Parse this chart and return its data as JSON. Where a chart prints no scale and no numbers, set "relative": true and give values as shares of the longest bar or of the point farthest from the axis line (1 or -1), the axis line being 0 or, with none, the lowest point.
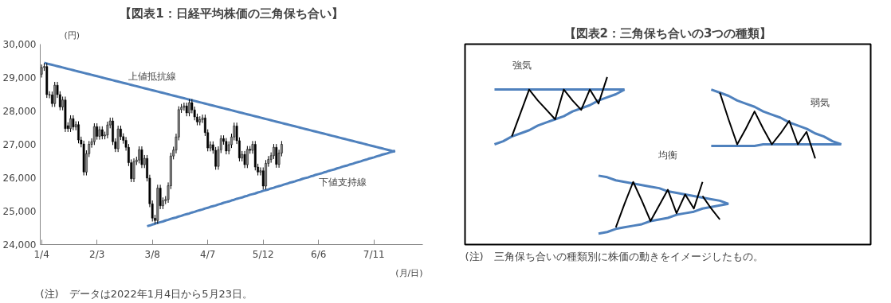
{
  "chart_data": [
    {
      "type": "candlestick",
      "title": "【図表1：日経平均株価の三角保ち合い】",
      "ylabel": "(円)",
      "xlabel": "(月/日)",
      "categories": [
        "1/4",
        null,
        null,
        null,
        null,
        null,
        null,
        null,
        null,
        null,
        null,
        null,
        null,
        null,
        null,
        null,
        null,
        null,
        null,
        null,
        null,
        "2/3",
        null,
        null,
        null,
        null,
        null,
        null,
        null,
        null,
        null,
        null,
        null,
        null,
        null,
        null,
        null,
        null,
        null,
        null,
        null,
        null,
        "3/8",
        null,
        null,
        null,
        null,
        null,
        null,
        null,
        null,
        null,
        null,
        null,
        null,
        null,
        null,
        null,
        null,
        null,
        null,
        null,
        null,
        "4/7",
        null,
        null,
        null,
        null,
        null,
        null,
        null,
        null,
        null,
        null,
        null,
        null,
        null,
        null,
        null,
        null,
        null,
        null,
        null,
        null,
        "5/12",
        null,
        null,
        null,
        null,
        null,
        null,
        null,
        null,
        null,
        null,
        null,
        null,
        null,
        null,
        null,
        null,
        null,
        null,
        null,
        null,
        "6/6",
        null,
        null,
        null,
        null,
        null,
        null,
        null,
        null,
        null,
        null,
        null,
        null,
        null,
        null,
        null,
        null,
        null,
        null,
        null,
        null,
        "7/11",
        null,
        null,
        null,
        null,
        null,
        null,
        null,
        null,
        null,
        null,
        null,
        null,
        null,
        null,
        null,
        null,
        null,
        null
      ],
      "ohlc": [
        [
          29100,
          29390,
          29000,
          29300
        ],
        [
          29300,
          29430,
          29200,
          29330
        ],
        [
          29330,
          29430,
          28390,
          28490
        ],
        [
          28490,
          28590,
          28380,
          28480
        ],
        [
          28480,
          28580,
          28120,
          28220
        ],
        [
          28220,
          28870,
          28120,
          28770
        ],
        [
          28770,
          28870,
          28390,
          28490
        ],
        [
          28490,
          28590,
          28020,
          28120
        ],
        [
          28120,
          28430,
          28020,
          28330
        ],
        [
          28330,
          28430,
          27370,
          27470
        ],
        [
          27560,
          27660,
          27370,
          27470
        ],
        [
          27470,
          27870,
          27370,
          27770
        ],
        [
          27770,
          27870,
          27420,
          27520
        ],
        [
          27520,
          27690,
          27420,
          27590
        ],
        [
          27590,
          27690,
          27030,
          27130
        ],
        [
          27130,
          27230,
          26910,
          27010
        ],
        [
          27010,
          27110,
          26070,
          26170
        ],
        [
          26170,
          26820,
          26070,
          26720
        ],
        [
          26720,
          27100,
          26620,
          27000
        ],
        [
          27000,
          27180,
          26900,
          27080
        ],
        [
          27080,
          27630,
          26980,
          27530
        ],
        [
          27530,
          27630,
          27140,
          27240
        ],
        [
          27240,
          27540,
          27140,
          27440
        ],
        [
          27440,
          27540,
          27150,
          27250
        ],
        [
          27250,
          27380,
          27150,
          27280
        ],
        [
          27280,
          27680,
          27180,
          27580
        ],
        [
          27580,
          27800,
          27480,
          27700
        ],
        [
          27700,
          27800,
          26980,
          27080
        ],
        [
          27080,
          27180,
          26770,
          26870
        ],
        [
          26870,
          27560,
          26770,
          27460
        ],
        [
          27460,
          27560,
          27130,
          27230
        ],
        [
          27230,
          27330,
          27020,
          27120
        ],
        [
          27120,
          27220,
          26810,
          26910
        ],
        [
          26910,
          27010,
          26350,
          26450
        ],
        [
          26450,
          26550,
          25870,
          25970
        ],
        [
          25970,
          26580,
          25870,
          26480
        ],
        [
          26480,
          26630,
          26380,
          26530
        ],
        [
          26530,
          26940,
          26430,
          26840
        ],
        [
          26840,
          26940,
          26290,
          26390
        ],
        [
          26390,
          26680,
          26290,
          26580
        ],
        [
          26580,
          26680,
          25890,
          25990
        ],
        [
          25990,
          26090,
          25120,
          25220
        ],
        [
          25220,
          25320,
          24690,
          24790
        ],
        [
          24790,
          24890,
          24620,
          24720
        ],
        [
          24720,
          25790,
          24620,
          25690
        ],
        [
          25690,
          25790,
          25060,
          25160
        ],
        [
          25160,
          25410,
          25060,
          25310
        ],
        [
          25310,
          25450,
          25210,
          25350
        ],
        [
          25350,
          25860,
          25250,
          25760
        ],
        [
          25760,
          26750,
          25660,
          26650
        ],
        [
          26650,
          26930,
          26550,
          26830
        ],
        [
          26830,
          27320,
          26730,
          27220
        ],
        [
          27220,
          28140,
          27120,
          28040
        ],
        [
          28040,
          28210,
          27940,
          28110
        ],
        [
          28110,
          28250,
          28010,
          28150
        ],
        [
          28150,
          28250,
          27840,
          27940
        ],
        [
          27940,
          28350,
          27840,
          28250
        ],
        [
          28250,
          28350,
          27930,
          28030
        ],
        [
          28030,
          28130,
          27720,
          27820
        ],
        [
          27820,
          27920,
          27570,
          27670
        ],
        [
          27670,
          27840,
          27570,
          27740
        ],
        [
          27740,
          27890,
          27640,
          27790
        ],
        [
          27790,
          27890,
          27250,
          27350
        ],
        [
          27350,
          27450,
          26790,
          26890
        ],
        [
          26890,
          27090,
          26790,
          26990
        ],
        [
          26990,
          27090,
          26720,
          26820
        ],
        [
          26820,
          26920,
          26240,
          26340
        ],
        [
          26340,
          26940,
          26240,
          26840
        ],
        [
          26840,
          27270,
          26740,
          27170
        ],
        [
          27170,
          27270,
          26990,
          27090
        ],
        [
          27090,
          27190,
          26700,
          26800
        ],
        [
          26800,
          27090,
          26700,
          26990
        ],
        [
          26990,
          27320,
          26890,
          27220
        ],
        [
          27220,
          27650,
          27120,
          27550
        ],
        [
          27550,
          27650,
          27010,
          27110
        ],
        [
          27110,
          27210,
          26490,
          26590
        ],
        [
          26590,
          26800,
          26490,
          26700
        ],
        [
          26700,
          26800,
          26290,
          26390
        ],
        [
          26390,
          26950,
          26290,
          26850
        ],
        [
          26850,
          26950,
          26720,
          26820
        ],
        [
          26820,
          27100,
          26720,
          27000
        ],
        [
          27000,
          27100,
          26220,
          26320
        ],
        [
          26320,
          26420,
          26070,
          26170
        ],
        [
          26170,
          26310,
          26070,
          26210
        ],
        [
          26210,
          26310,
          25650,
          25750
        ],
        [
          25750,
          26530,
          25650,
          26430
        ],
        [
          26430,
          26650,
          26330,
          26550
        ],
        [
          26550,
          26760,
          26450,
          26660
        ],
        [
          26660,
          27010,
          26560,
          26910
        ],
        [
          26910,
          27010,
          26300,
          26400
        ],
        [
          26400,
          26840,
          26300,
          26740
        ],
        [
          26740,
          27100,
          26640,
          27000
        ],
        null,
        null,
        null,
        null,
        null,
        null,
        null,
        null,
        null,
        null,
        null,
        null,
        null,
        null,
        null,
        null,
        null,
        null,
        null,
        null,
        null,
        null,
        null,
        null,
        null,
        null,
        null,
        null,
        null,
        null,
        null,
        null,
        null,
        null,
        null,
        null,
        null,
        null,
        null,
        null,
        null,
        null,
        null,
        null,
        null,
        null,
        null,
        null,
        null,
        null,
        null,
        null,
        null
      ],
      "colors": [
        "#808080",
        "#808080",
        "#000000",
        "#000000",
        "#000000",
        "#808080",
        "#000000",
        "#000000",
        "#808080",
        "#000000",
        "#000000",
        "#808080",
        "#000000",
        "#808080",
        "#000000",
        "#000000",
        "#000000",
        "#808080",
        "#808080",
        "#808080",
        "#808080",
        "#000000",
        "#808080",
        "#000000",
        "#808080",
        "#808080",
        "#808080",
        "#000000",
        "#000000",
        "#808080",
        "#000000",
        "#000000",
        "#000000",
        "#000000",
        "#000000",
        "#808080",
        "#808080",
        "#808080",
        "#000000",
        "#808080",
        "#000000",
        "#000000",
        "#000000",
        "#000000",
        "#808080",
        "#000000",
        "#808080",
        "#808080",
        "#808080",
        "#808080",
        "#808080",
        "#808080",
        "#808080",
        "#808080",
        "#808080",
        "#000000",
        "#808080",
        "#000000",
        "#000000",
        "#000000",
        "#808080",
        "#808080",
        "#000000",
        "#000000",
        "#808080",
        "#000000",
        "#000000",
        "#808080",
        "#808080",
        "#000000",
        "#000000",
        "#808080",
        "#808080",
        "#808080",
        "#000000",
        "#000000",
        "#808080",
        "#000000",
        "#808080",
        "#000000",
        "#808080",
        "#000000",
        "#000000",
        "#808080",
        "#000000",
        "#808080",
        "#808080",
        "#808080",
        "#808080",
        "#000000",
        "#808080",
        "#808080",
        null,
        null,
        null,
        null,
        null,
        null,
        null,
        null,
        null,
        null,
        null,
        null,
        null,
        null,
        null,
        null,
        null,
        null,
        null,
        null,
        null,
        null,
        null,
        null,
        null,
        null,
        null,
        null,
        null,
        null,
        null,
        null,
        null,
        null,
        null,
        null,
        null,
        null,
        null,
        null,
        null,
        null,
        null,
        null,
        null,
        null,
        null,
        null,
        null,
        null,
        null,
        null,
        null
      ],
      "series": [
        {
          "type": "line",
          "color": "#4f81bd",
          "values": [
            null,
            29440,
            29420,
            29400,
            29380,
            29360,
            29340,
            29320,
            29300,
            29280,
            29260,
            29240,
            29220,
            29200,
            29180,
            29160,
            29140,
            29120,
            29100,
            29080,
            29060,
            29040,
            29020,
            29000,
            28980,
            28960,
            28940,
            28920,
            28900,
            28880,
            28860,
            28840,
            28820,
            28800,
            28780,
            28760,
            28740,
            28720,
            28700,
            28680,
            28660,
            28640,
            28620,
            28600,
            28580,
            28560,
            28540,
            28520,
            28500,
            28480,
            28460,
            28440,
            28420,
            28400,
            28380,
            28360,
            28340,
            28320,
            28300,
            28280,
            28260,
            28240,
            28220,
            28200,
            28180,
            28160,
            28140,
            28120,
            28100,
            28080,
            28060,
            28040,
            28020,
            28000,
            27980,
            27960,
            27940,
            27920,
            27900,
            27880,
            27860,
            27840,
            27820,
            27800,
            27780,
            27760,
            27740,
            27720,
            27700,
            27680,
            27660,
            27640,
            27620,
            27600,
            27580,
            27560,
            27540,
            27520,
            27500,
            27480,
            27460,
            27440,
            27420,
            27400,
            27380,
            27360,
            27340,
            27320,
            27300,
            27280,
            27260,
            27240,
            27220,
            27200,
            27180,
            27160,
            27140,
            27120,
            27100,
            27080,
            27060,
            27040,
            27020,
            27000,
            26980,
            26960,
            26940,
            26920,
            26900,
            26880,
            26860,
            26840,
            26820,
            26800,
            26780,
            null,
            null,
            null,
            null,
            null,
            null,
            null,
            null,
            null,
            null
          ]
        },
        {
          "type": "line",
          "color": "#4f81bd",
          "values": [
            null,
            null,
            null,
            null,
            null,
            null,
            null,
            null,
            null,
            null,
            null,
            null,
            null,
            null,
            null,
            null,
            null,
            null,
            null,
            null,
            null,
            null,
            null,
            null,
            null,
            null,
            null,
            null,
            null,
            null,
            null,
            null,
            null,
            null,
            null,
            null,
            null,
            null,
            null,
            null,
            24550,
            24570,
            24600,
            24620,
            24650,
            24670,
            24690,
            24720,
            24740,
            24770,
            24790,
            24810,
            24840,
            24860,
            24890,
            24910,
            24930,
            24960,
            24980,
            25010,
            25030,
            25050,
            25080,
            25100,
            25130,
            25150,
            25170,
            25200,
            25220,
            25250,
            25270,
            25290,
            25320,
            25340,
            25370,
            25390,
            25410,
            25440,
            25460,
            25490,
            25510,
            25530,
            25560,
            25580,
            25610,
            25630,
            25650,
            25680,
            25700,
            25730,
            25750,
            25770,
            25800,
            25820,
            25850,
            25870,
            25890,
            25920,
            25940,
            25970,
            25990,
            26010,
            26040,
            26060,
            26090,
            26110,
            26130,
            26160,
            26180,
            26210,
            26230,
            26250,
            26280,
            26300,
            26330,
            26350,
            26370,
            26400,
            26420,
            26450,
            26470,
            26490,
            26520,
            26540,
            26570,
            26590,
            26610,
            26640,
            26660,
            26690,
            26710,
            26730,
            26760,
            26780,
            26810,
            null,
            null,
            null,
            null,
            null,
            null,
            null,
            null,
            null,
            null
          ]
        }
      ],
      "ylim": [
        24000,
        30000
      ],
      "yticks": [
        {
          "value": 24000,
          "label": "24,000"
        },
        {
          "value": 25000,
          "label": "25,000"
        },
        {
          "value": 26000,
          "label": "26,000"
        },
        {
          "value": 27000,
          "label": "27,000"
        },
        {
          "value": 28000,
          "label": "28,000"
        },
        {
          "value": 29000,
          "label": "29,000"
        },
        {
          "value": 30000,
          "label": "30,000"
        }
      ],
      "annotations": [
        "上値抵抗線",
        "下値支持線",
        "(注)　データは2022年1月4日から5月23日。"
      ]
    },
    {
      "type": "line",
      "relative": true,
      "title": "【図表2：三角保ち合いの3つの種類】",
      "categories": [
        null,
        null,
        null,
        null,
        null,
        null,
        null,
        null,
        null,
        null,
        null,
        null,
        null,
        null,
        null,
        null,
        null,
        null,
        null,
        null,
        null,
        null,
        null,
        null,
        null,
        null,
        null,
        null,
        null,
        null,
        null,
        null,
        null,
        null,
        null,
        null,
        null,
        null,
        null,
        null,
        null
      ],
      "series": [
        {
          "color": "#4f81bd",
          "values": [
            0.92,
            0.92,
            0.92,
            0.92,
            0.92,
            0.92,
            0.92,
            0.92,
            0.92,
            0.92,
            0.92,
            0.92,
            0.92,
            0.92,
            0.92,
            0.92,
            null,
            null,
            null,
            null,
            null,
            null,
            null,
            null,
            null,
            null,
            null,
            null,
            null,
            null,
            null,
            null,
            null,
            null,
            null,
            null,
            null,
            null,
            null,
            null,
            null
          ]
        },
        {
          "color": "#4f81bd",
          "values": [
            0.57,
            0.59,
            0.62,
            0.64,
            0.66,
            0.69,
            0.71,
            0.73,
            0.75,
            0.78,
            0.8,
            0.82,
            0.85,
            0.87,
            0.89,
            0.92,
            null,
            null,
            null,
            null,
            null,
            null,
            null,
            null,
            null,
            null,
            null,
            null,
            null,
            null,
            null,
            null,
            null,
            null,
            null,
            null,
            null,
            null,
            null,
            null,
            null
          ]
        },
        {
          "color": "#000000",
          "values": [
            null,
            null,
            0.62,
            0.77,
            0.92,
            0.85,
            0.79,
            0.73,
            0.92,
            0.85,
            0.79,
            0.92,
            0.83,
            1.0,
            null,
            null,
            null,
            null,
            null,
            null,
            null,
            null,
            null,
            null,
            null,
            null,
            null,
            null,
            null,
            null,
            null,
            null,
            null,
            null,
            null,
            null,
            null,
            null,
            null,
            null,
            null
          ]
        },
        {
          "color": "#4f81bd",
          "values": [
            null,
            null,
            null,
            null,
            null,
            null,
            null,
            null,
            null,
            null,
            null,
            null,
            null,
            null,
            null,
            null,
            null,
            null,
            null,
            null,
            null,
            null,
            null,
            null,
            null,
            0.92,
            0.9,
            0.88,
            0.85,
            0.83,
            0.81,
            0.78,
            0.76,
            0.74,
            0.71,
            0.69,
            0.67,
            0.64,
            0.62,
            0.59,
            0.57
          ]
        },
        {
          "color": "#4f81bd",
          "values": [
            null,
            null,
            null,
            null,
            null,
            null,
            null,
            null,
            null,
            null,
            null,
            null,
            null,
            null,
            null,
            null,
            null,
            null,
            null,
            null,
            null,
            null,
            null,
            null,
            null,
            0.56,
            0.56,
            0.56,
            0.56,
            0.56,
            0.56,
            0.57,
            0.57,
            0.57,
            0.57,
            0.57,
            0.57,
            0.57,
            0.57,
            0.57,
            0.57
          ]
        },
        {
          "color": "#000000",
          "values": [
            null,
            null,
            null,
            null,
            null,
            null,
            null,
            null,
            null,
            null,
            null,
            null,
            null,
            null,
            null,
            null,
            null,
            null,
            null,
            null,
            null,
            null,
            null,
            null,
            null,
            null,
            0.9,
            0.73,
            0.57,
            0.67,
            0.78,
            0.67,
            0.57,
            0.64,
            0.72,
            0.57,
            0.65,
            0.48,
            null,
            null,
            null
          ]
        },
        {
          "color": "#4f81bd",
          "values": [
            null,
            null,
            null,
            null,
            null,
            null,
            null,
            null,
            null,
            null,
            null,
            null,
            0.37,
            0.36,
            0.34,
            0.33,
            0.32,
            0.31,
            0.3,
            0.29,
            0.27,
            0.26,
            0.25,
            0.24,
            0.23,
            0.22,
            0.21,
            0.19,
            null,
            null,
            null,
            null,
            null,
            null,
            null,
            null,
            null,
            null,
            null,
            null,
            null
          ]
        },
        {
          "color": "#4f81bd",
          "values": [
            null,
            null,
            null,
            null,
            null,
            null,
            null,
            null,
            null,
            null,
            null,
            null,
            0,
            0.01,
            0.03,
            0.04,
            0.05,
            0.06,
            0.08,
            0.09,
            0.1,
            0.12,
            0.13,
            0.14,
            0.16,
            0.17,
            0.18,
            0.19,
            null,
            null,
            null,
            null,
            null,
            null,
            null,
            null,
            null,
            null,
            null,
            null,
            null
          ]
        },
        {
          "color": "#000000",
          "values": [
            null,
            null,
            null,
            null,
            null,
            null,
            null,
            null,
            null,
            null,
            null,
            null,
            null,
            null,
            0.04,
            0.19,
            0.33,
            0.21,
            0.08,
            0.18,
            0.28,
            0.13,
            0.25,
            0.16,
            0.33,
            null,
            null,
            null,
            null,
            null,
            null,
            null,
            null,
            null,
            null,
            null,
            null,
            null,
            null,
            null,
            null
          ]
        },
        {
          "color": "#000000",
          "values": [
            null,
            null,
            null,
            null,
            null,
            null,
            null,
            null,
            null,
            null,
            null,
            null,
            null,
            null,
            null,
            null,
            null,
            null,
            null,
            null,
            null,
            null,
            null,
            null,
            0.24,
            0.16,
            0.09,
            null,
            null,
            null,
            null,
            null,
            null,
            null,
            null,
            null,
            null,
            null,
            null,
            null,
            null
          ]
        }
      ],
      "annotations": [
        "強気",
        "弱気",
        "均衡",
        "(注)　三角保ち合いの種類別に株価の動きをイメージしたもの。"
      ]
    }
  ]
}
